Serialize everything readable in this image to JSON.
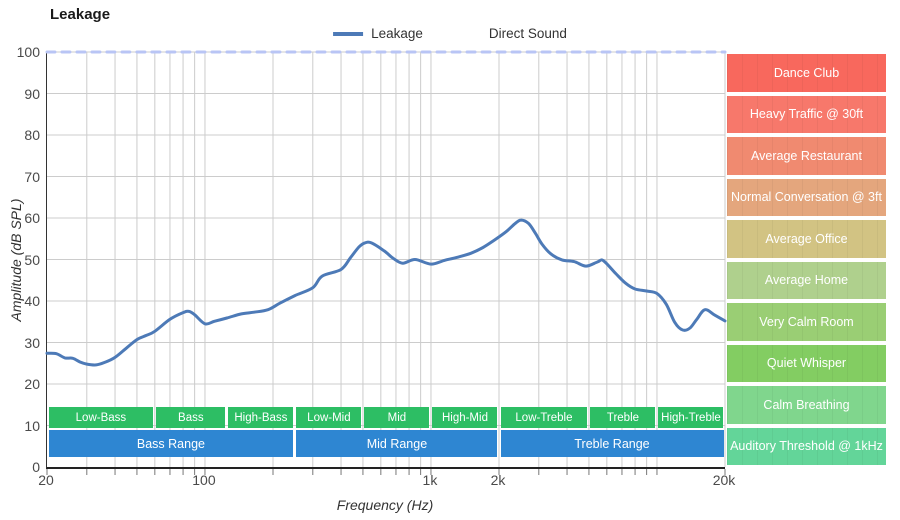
{
  "title": "Leakage",
  "legend": {
    "items": [
      {
        "label": "Leakage",
        "style": "solid",
        "color": "#4d7ab7"
      },
      {
        "label": "Direct Sound",
        "style": "dashed",
        "color": "#b9c5f5"
      }
    ]
  },
  "axes": {
    "x": {
      "label": "Frequency (Hz)",
      "scale": "log",
      "min": 20,
      "max": 20000,
      "tick_labels": [
        {
          "value": 20,
          "label": "20"
        },
        {
          "value": 100,
          "label": "100"
        },
        {
          "value": 1000,
          "label": "1k"
        },
        {
          "value": 2000,
          "label": "2k"
        },
        {
          "value": 20000,
          "label": "20k"
        }
      ],
      "gridline_frequencies": [
        20,
        30,
        40,
        50,
        60,
        70,
        80,
        90,
        100,
        200,
        300,
        400,
        500,
        600,
        700,
        800,
        900,
        1000,
        2000,
        3000,
        4000,
        5000,
        6000,
        7000,
        8000,
        9000,
        10000,
        20000
      ]
    },
    "y": {
      "label": "Amplitude (dB SPL)",
      "min": 0,
      "max": 100,
      "tick_step": 10,
      "tick_labels": [
        "0",
        "10",
        "20",
        "30",
        "40",
        "50",
        "60",
        "70",
        "80",
        "90",
        "100"
      ]
    }
  },
  "chart_data": {
    "type": "line",
    "title": "Leakage",
    "xlabel": "Frequency (Hz)",
    "ylabel": "Amplitude (dB SPL)",
    "x_scale": "log",
    "xlim": [
      20,
      20000
    ],
    "ylim": [
      0,
      100
    ],
    "grid": true,
    "legend_position": "top-center",
    "series": [
      {
        "name": "Leakage",
        "style": "solid",
        "color": "#4d7ab7",
        "points": [
          [
            20,
            27.4
          ],
          [
            22,
            27.3
          ],
          [
            24,
            26.3
          ],
          [
            26,
            26.2
          ],
          [
            28,
            25.3
          ],
          [
            30,
            24.8
          ],
          [
            33,
            24.6
          ],
          [
            36,
            25.2
          ],
          [
            40,
            26.4
          ],
          [
            45,
            28.7
          ],
          [
            50,
            30.7
          ],
          [
            55,
            31.7
          ],
          [
            60,
            32.7
          ],
          [
            70,
            35.6
          ],
          [
            80,
            37.2
          ],
          [
            85,
            37.5
          ],
          [
            90,
            36.7
          ],
          [
            100,
            34.5
          ],
          [
            110,
            35.1
          ],
          [
            125,
            35.9
          ],
          [
            145,
            36.9
          ],
          [
            165,
            37.3
          ],
          [
            190,
            37.9
          ],
          [
            215,
            39.5
          ],
          [
            250,
            41.3
          ],
          [
            300,
            43.2
          ],
          [
            330,
            46.0
          ],
          [
            400,
            47.6
          ],
          [
            440,
            50.4
          ],
          [
            480,
            53.0
          ],
          [
            510,
            54.0
          ],
          [
            545,
            54.0
          ],
          [
            620,
            52.1
          ],
          [
            680,
            50.3
          ],
          [
            750,
            49.1
          ],
          [
            850,
            50.0
          ],
          [
            1000,
            48.9
          ],
          [
            1150,
            49.8
          ],
          [
            1300,
            50.5
          ],
          [
            1500,
            51.5
          ],
          [
            1700,
            52.9
          ],
          [
            1900,
            54.6
          ],
          [
            2150,
            56.7
          ],
          [
            2350,
            58.6
          ],
          [
            2500,
            59.5
          ],
          [
            2700,
            58.7
          ],
          [
            2900,
            56.3
          ],
          [
            3100,
            53.7
          ],
          [
            3400,
            51.3
          ],
          [
            3800,
            49.9
          ],
          [
            4300,
            49.5
          ],
          [
            4850,
            48.4
          ],
          [
            5450,
            49.4
          ],
          [
            5800,
            49.7
          ],
          [
            6600,
            46.5
          ],
          [
            7300,
            44.2
          ],
          [
            8000,
            42.9
          ],
          [
            9000,
            42.4
          ],
          [
            10000,
            41.8
          ],
          [
            11000,
            39.2
          ],
          [
            12000,
            34.8
          ],
          [
            13000,
            33.0
          ],
          [
            14000,
            33.5
          ],
          [
            15000,
            35.6
          ],
          [
            16300,
            37.9
          ],
          [
            18000,
            36.6
          ],
          [
            20000,
            35.2
          ]
        ]
      },
      {
        "name": "Direct Sound",
        "style": "dashed",
        "color": "#b9c5f5",
        "points": [
          [
            20,
            100
          ],
          [
            20000,
            100
          ]
        ]
      }
    ]
  },
  "frequency_bands": {
    "sub_bands": {
      "color": "#2dbe64",
      "items": [
        {
          "label": "Low-Bass",
          "from": 20,
          "to": 60
        },
        {
          "label": "Bass",
          "from": 60,
          "to": 125
        },
        {
          "label": "High-Bass",
          "from": 125,
          "to": 250
        },
        {
          "label": "Low-Mid",
          "from": 250,
          "to": 500
        },
        {
          "label": "Mid",
          "from": 500,
          "to": 1000
        },
        {
          "label": "High-Mid",
          "from": 1000,
          "to": 2000
        },
        {
          "label": "Low-Treble",
          "from": 2000,
          "to": 5000
        },
        {
          "label": "Treble",
          "from": 5000,
          "to": 10000
        },
        {
          "label": "High-Treble",
          "from": 10000,
          "to": 20000
        }
      ]
    },
    "ranges": {
      "color": "#2e86d2",
      "items": [
        {
          "label": "Bass Range",
          "from": 20,
          "to": 250
        },
        {
          "label": "Mid Range",
          "from": 250,
          "to": 2000
        },
        {
          "label": "Treble Range",
          "from": 2000,
          "to": 20000
        }
      ]
    }
  },
  "loudness_reference_bands": [
    {
      "label": "Dance Club",
      "color": "#f8685d",
      "db_from": 90,
      "db_to": 100
    },
    {
      "label": "Heavy Traffic @ 30ft",
      "color": "#f7786b",
      "db_from": 80,
      "db_to": 90
    },
    {
      "label": "Average Restaurant",
      "color": "#f08a70",
      "db_from": 70,
      "db_to": 80
    },
    {
      "label": "Normal Conversation @ 3ft",
      "color": "#e4a67d",
      "db_from": 60,
      "db_to": 70
    },
    {
      "label": "Average Office",
      "color": "#d2c383",
      "db_from": 50,
      "db_to": 60
    },
    {
      "label": "Average Home",
      "color": "#afd08d",
      "db_from": 40,
      "db_to": 50
    },
    {
      "label": "Very Calm Room",
      "color": "#9ace74",
      "db_from": 30,
      "db_to": 40
    },
    {
      "label": "Quiet Whisper",
      "color": "#83cd62",
      "db_from": 20,
      "db_to": 30
    },
    {
      "label": "Calm Breathing",
      "color": "#80d68d",
      "db_from": 10,
      "db_to": 20
    },
    {
      "label": "Auditory Threshold @ 1kHz",
      "color": "#63d599",
      "db_from": 0,
      "db_to": 10
    }
  ],
  "colors": {
    "gridline": "#cccccc",
    "axis": "#333333",
    "tick": "#777777",
    "tick_label": "#4a4a4a"
  }
}
